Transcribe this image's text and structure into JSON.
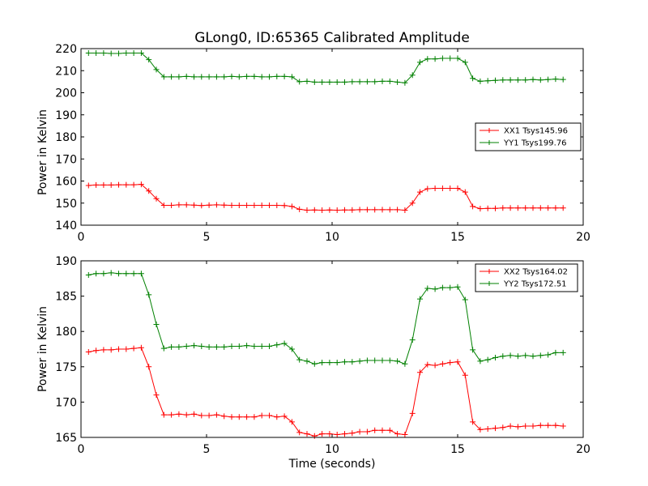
{
  "chart_data": [
    {
      "type": "line",
      "title": "GLong0, ID:65365 Calibrated Amplitude",
      "xlabel": "",
      "ylabel": "Power in Kelvin",
      "xlim": [
        0,
        20
      ],
      "ylim": [
        140,
        220
      ],
      "xticks": [
        "0",
        "5",
        "10",
        "15",
        "20"
      ],
      "yticks": [
        "140",
        "150",
        "160",
        "170",
        "180",
        "190",
        "200",
        "210",
        "220"
      ],
      "grid": false,
      "legend": "right-middle",
      "x": [
        0.3,
        0.6,
        0.9,
        1.2,
        1.5,
        1.8,
        2.1,
        2.4,
        2.7,
        3.0,
        3.3,
        3.6,
        3.9,
        4.2,
        4.5,
        4.8,
        5.1,
        5.4,
        5.7,
        6.0,
        6.3,
        6.6,
        6.9,
        7.2,
        7.5,
        7.8,
        8.1,
        8.4,
        8.7,
        9.0,
        9.3,
        9.6,
        9.9,
        10.2,
        10.5,
        10.8,
        11.1,
        11.4,
        11.7,
        12.0,
        12.3,
        12.6,
        12.9,
        13.2,
        13.5,
        13.8,
        14.1,
        14.4,
        14.7,
        15.0,
        15.3,
        15.6,
        15.9,
        16.2,
        16.5,
        16.8,
        17.1,
        17.4,
        17.7,
        18.0,
        18.3,
        18.6,
        18.9,
        19.2
      ],
      "series": [
        {
          "name": "XX1 Tsys145.96",
          "color": "#ff0000",
          "values": [
            158.0,
            158.2,
            158.2,
            158.2,
            158.3,
            158.3,
            158.3,
            158.5,
            155.5,
            152.0,
            149.0,
            149.0,
            149.2,
            149.2,
            149.1,
            148.9,
            149.1,
            149.2,
            149.1,
            149.0,
            149.0,
            149.0,
            149.0,
            149.0,
            149.0,
            149.0,
            148.9,
            148.5,
            147.2,
            146.8,
            146.9,
            146.8,
            146.9,
            146.8,
            146.9,
            146.9,
            147.0,
            147.0,
            147.0,
            147.0,
            147.0,
            147.0,
            146.8,
            150.0,
            155.0,
            156.5,
            156.7,
            156.7,
            156.7,
            156.7,
            155.0,
            148.5,
            147.5,
            147.6,
            147.6,
            147.8,
            147.8,
            147.8,
            147.8,
            147.8,
            147.8,
            147.8,
            147.8,
            147.8
          ]
        },
        {
          "name": "YY1 Tsys199.76",
          "color": "#008000",
          "values": [
            218.0,
            218.0,
            218.0,
            217.8,
            217.8,
            218.0,
            218.0,
            218.0,
            215.0,
            210.5,
            207.2,
            207.2,
            207.2,
            207.4,
            207.2,
            207.2,
            207.2,
            207.2,
            207.2,
            207.4,
            207.2,
            207.4,
            207.4,
            207.2,
            207.2,
            207.4,
            207.4,
            207.2,
            205.0,
            205.2,
            204.8,
            204.8,
            204.8,
            204.8,
            204.8,
            205.0,
            205.0,
            205.0,
            205.0,
            205.2,
            205.2,
            204.8,
            204.5,
            208.0,
            213.8,
            215.3,
            215.3,
            215.6,
            215.6,
            215.6,
            213.8,
            206.5,
            205.2,
            205.4,
            205.6,
            205.8,
            205.8,
            205.8,
            205.8,
            206.0,
            205.8,
            206.0,
            206.2,
            206.0
          ]
        }
      ]
    },
    {
      "type": "line",
      "title": "",
      "xlabel": "Time (seconds)",
      "ylabel": "Power in Kelvin",
      "xlim": [
        0,
        20
      ],
      "ylim": [
        165,
        190
      ],
      "xticks": [
        "0",
        "5",
        "10",
        "15",
        "20"
      ],
      "yticks": [
        "165",
        "170",
        "175",
        "180",
        "185",
        "190"
      ],
      "grid": false,
      "legend": "top-right",
      "x": [
        0.3,
        0.6,
        0.9,
        1.2,
        1.5,
        1.8,
        2.1,
        2.4,
        2.7,
        3.0,
        3.3,
        3.6,
        3.9,
        4.2,
        4.5,
        4.8,
        5.1,
        5.4,
        5.7,
        6.0,
        6.3,
        6.6,
        6.9,
        7.2,
        7.5,
        7.8,
        8.1,
        8.4,
        8.7,
        9.0,
        9.3,
        9.6,
        9.9,
        10.2,
        10.5,
        10.8,
        11.1,
        11.4,
        11.7,
        12.0,
        12.3,
        12.6,
        12.9,
        13.2,
        13.5,
        13.8,
        14.1,
        14.4,
        14.7,
        15.0,
        15.3,
        15.6,
        15.9,
        16.2,
        16.5,
        16.8,
        17.1,
        17.4,
        17.7,
        18.0,
        18.3,
        18.6,
        18.9,
        19.2
      ],
      "series": [
        {
          "name": "XX2 Tsys164.02",
          "color": "#ff0000",
          "values": [
            177.1,
            177.3,
            177.4,
            177.4,
            177.5,
            177.5,
            177.6,
            177.7,
            175.0,
            171.0,
            168.2,
            168.2,
            168.3,
            168.2,
            168.3,
            168.1,
            168.1,
            168.2,
            168.0,
            167.9,
            167.9,
            167.9,
            167.9,
            168.1,
            168.1,
            167.9,
            168.0,
            167.2,
            165.7,
            165.5,
            165.2,
            165.5,
            165.5,
            165.4,
            165.5,
            165.6,
            165.8,
            165.8,
            166.0,
            166.0,
            166.0,
            165.5,
            165.4,
            168.4,
            174.2,
            175.3,
            175.2,
            175.4,
            175.6,
            175.7,
            173.8,
            167.2,
            166.1,
            166.2,
            166.3,
            166.4,
            166.6,
            166.5,
            166.6,
            166.6,
            166.7,
            166.7,
            166.7,
            166.6
          ]
        },
        {
          "name": "YY2 Tsys172.51",
          "color": "#008000",
          "values": [
            188.0,
            188.2,
            188.2,
            188.3,
            188.2,
            188.2,
            188.2,
            188.2,
            185.2,
            181.0,
            177.6,
            177.8,
            177.8,
            177.9,
            178.0,
            177.9,
            177.8,
            177.8,
            177.8,
            177.9,
            177.9,
            178.0,
            177.9,
            177.9,
            177.9,
            178.1,
            178.3,
            177.5,
            176.0,
            175.8,
            175.4,
            175.6,
            175.6,
            175.6,
            175.7,
            175.7,
            175.8,
            175.9,
            175.9,
            175.9,
            175.9,
            175.8,
            175.4,
            178.8,
            184.6,
            186.1,
            186.0,
            186.2,
            186.2,
            186.3,
            184.5,
            177.4,
            175.8,
            176.0,
            176.3,
            176.5,
            176.6,
            176.5,
            176.6,
            176.5,
            176.6,
            176.7,
            177.0,
            177.0
          ]
        }
      ]
    }
  ]
}
